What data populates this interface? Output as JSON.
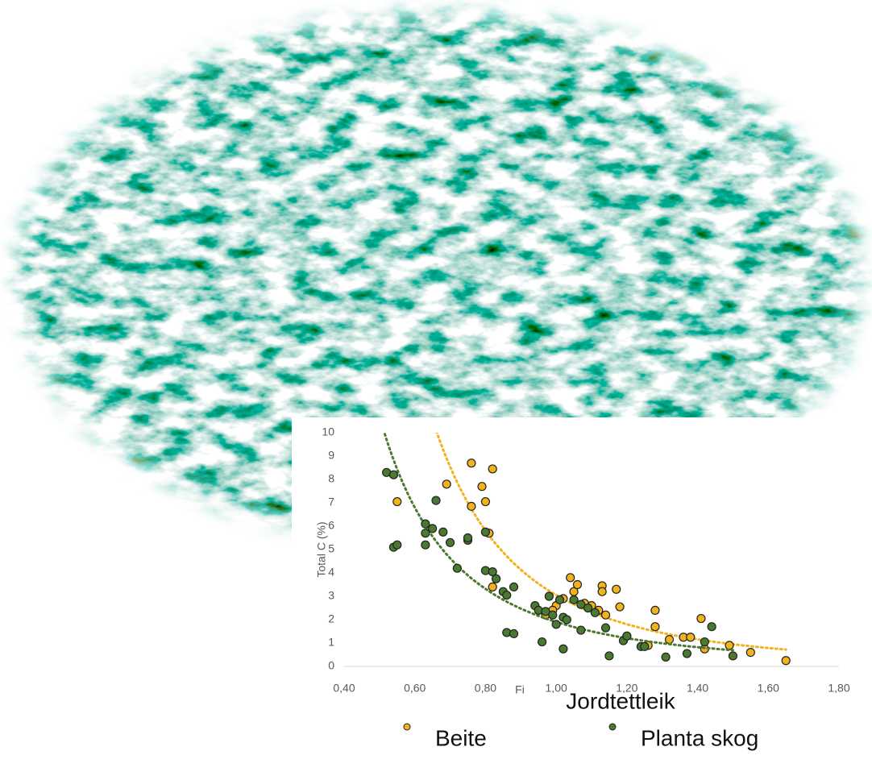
{
  "chart_data": {
    "type": "scatter",
    "xlabel": "Fi",
    "ylabel": "Total C (%)",
    "caption": "Jordtettleik",
    "xlim": [
      0.4,
      1.8
    ],
    "xticks": [
      {
        "value": 0.4,
        "label": "0,40"
      },
      {
        "value": 0.6,
        "label": "0,60"
      },
      {
        "value": 0.8,
        "label": "0,80"
      },
      {
        "value": 1.0,
        "label": "1,00"
      },
      {
        "value": 1.2,
        "label": "1,20"
      },
      {
        "value": 1.4,
        "label": "1,40"
      },
      {
        "value": 1.6,
        "label": "1,60"
      },
      {
        "value": 1.8,
        "label": "1,80"
      }
    ],
    "ylim": [
      0,
      10
    ],
    "yticks": [
      0,
      1,
      2,
      3,
      4,
      5,
      6,
      7,
      8,
      9,
      10
    ],
    "trendline": "power",
    "series": [
      {
        "name": "Beite",
        "color": "#f2b21c",
        "x": [
          0.55,
          0.69,
          0.76,
          0.76,
          0.79,
          0.8,
          0.82,
          0.81,
          0.82,
          1.0,
          1.02,
          1.04,
          1.05,
          1.06,
          1.08,
          1.1,
          1.12,
          1.13,
          1.13,
          1.14,
          1.17,
          1.18,
          1.2,
          1.26,
          1.28,
          1.28,
          1.32,
          1.36,
          1.38,
          1.41,
          1.42,
          1.49,
          1.55,
          1.65,
          0.97,
          0.99
        ],
        "values": [
          7.05,
          7.8,
          8.7,
          6.85,
          7.7,
          7.05,
          8.45,
          5.7,
          3.4,
          2.6,
          2.9,
          3.8,
          3.2,
          3.5,
          2.7,
          2.6,
          2.4,
          3.45,
          3.2,
          2.2,
          3.3,
          2.55,
          1.3,
          0.9,
          2.4,
          1.7,
          1.15,
          1.25,
          1.25,
          2.05,
          0.75,
          0.9,
          0.6,
          0.25,
          2.2,
          2.4
        ]
      },
      {
        "name": "Planta skog",
        "color": "#4a7a30",
        "x": [
          0.52,
          0.54,
          0.54,
          0.55,
          0.63,
          0.63,
          0.63,
          0.65,
          0.66,
          0.68,
          0.7,
          0.72,
          0.75,
          0.75,
          0.8,
          0.8,
          0.82,
          0.83,
          0.85,
          0.86,
          0.86,
          0.88,
          0.88,
          0.94,
          0.95,
          0.96,
          0.97,
          0.98,
          0.99,
          1.0,
          1.01,
          1.02,
          1.02,
          1.03,
          1.05,
          1.07,
          1.07,
          1.09,
          1.11,
          1.14,
          1.15,
          1.19,
          1.2,
          1.24,
          1.25,
          1.31,
          1.37,
          1.42,
          1.44,
          1.5
        ],
        "values": [
          8.3,
          8.2,
          5.1,
          5.2,
          5.7,
          6.1,
          5.2,
          5.9,
          7.1,
          5.75,
          5.3,
          4.2,
          5.4,
          5.5,
          5.75,
          4.1,
          4.05,
          3.75,
          3.2,
          3.05,
          1.45,
          1.4,
          3.4,
          2.6,
          2.4,
          1.05,
          2.35,
          3.0,
          2.2,
          1.8,
          2.85,
          0.75,
          2.1,
          2.0,
          2.85,
          1.55,
          2.65,
          2.5,
          2.3,
          1.65,
          0.45,
          1.1,
          1.3,
          0.85,
          0.85,
          0.4,
          0.55,
          1.05,
          1.7,
          0.45
        ]
      }
    ]
  }
}
